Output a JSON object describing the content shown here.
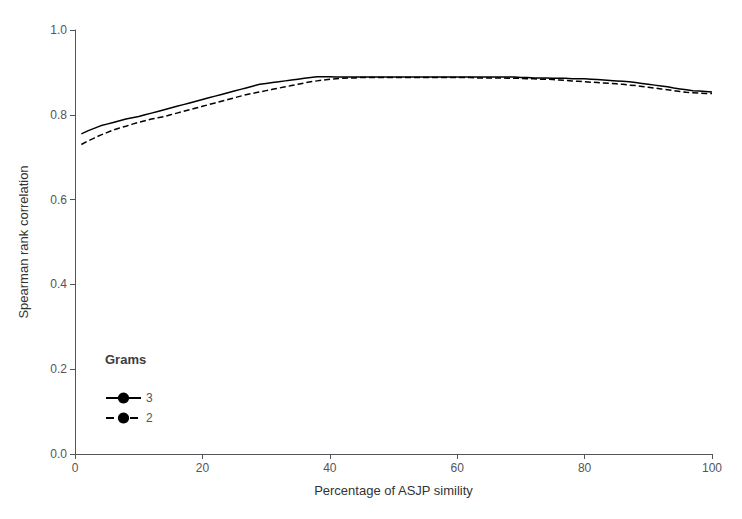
{
  "chart_data": {
    "type": "line",
    "xlabel": "Percentage of ASJP simility",
    "ylabel": "Spearman rank correlation",
    "legend_title": "Grams",
    "x": [
      1,
      2,
      3,
      4,
      5,
      6,
      7,
      8,
      9,
      10,
      11,
      12,
      13,
      14,
      15,
      16,
      17,
      18,
      19,
      20,
      21,
      22,
      23,
      24,
      25,
      26,
      27,
      28,
      29,
      30,
      31,
      32,
      33,
      34,
      35,
      36,
      37,
      38,
      39,
      40,
      41,
      42,
      43,
      44,
      45,
      46,
      47,
      48,
      49,
      50,
      51,
      52,
      53,
      54,
      55,
      56,
      57,
      58,
      59,
      60,
      61,
      62,
      63,
      64,
      65,
      66,
      67,
      68,
      69,
      70,
      71,
      72,
      73,
      74,
      75,
      76,
      77,
      78,
      79,
      80,
      81,
      82,
      83,
      84,
      85,
      86,
      87,
      88,
      89,
      90,
      91,
      92,
      93,
      94,
      95,
      96,
      97,
      98,
      99,
      100
    ],
    "series": [
      {
        "name": "3",
        "color": "#000000",
        "line_style": "solid",
        "values": [
          0.755,
          0.762,
          0.768,
          0.774,
          0.778,
          0.782,
          0.786,
          0.79,
          0.793,
          0.796,
          0.8,
          0.804,
          0.808,
          0.812,
          0.816,
          0.82,
          0.824,
          0.828,
          0.832,
          0.836,
          0.84,
          0.844,
          0.848,
          0.852,
          0.856,
          0.86,
          0.864,
          0.868,
          0.872,
          0.874,
          0.876,
          0.878,
          0.88,
          0.882,
          0.884,
          0.886,
          0.888,
          0.89,
          0.89,
          0.89,
          0.889,
          0.889,
          0.889,
          0.889,
          0.889,
          0.889,
          0.889,
          0.889,
          0.889,
          0.889,
          0.889,
          0.889,
          0.889,
          0.889,
          0.889,
          0.889,
          0.889,
          0.889,
          0.889,
          0.889,
          0.889,
          0.889,
          0.889,
          0.889,
          0.889,
          0.889,
          0.889,
          0.889,
          0.889,
          0.888,
          0.888,
          0.887,
          0.887,
          0.887,
          0.886,
          0.886,
          0.886,
          0.885,
          0.885,
          0.885,
          0.884,
          0.883,
          0.882,
          0.881,
          0.88,
          0.879,
          0.878,
          0.876,
          0.874,
          0.872,
          0.87,
          0.868,
          0.866,
          0.863,
          0.861,
          0.859,
          0.857,
          0.856,
          0.855,
          0.854
        ]
      },
      {
        "name": "2",
        "color": "#000000",
        "line_style": "dashed",
        "values": [
          0.73,
          0.738,
          0.745,
          0.752,
          0.758,
          0.764,
          0.769,
          0.773,
          0.778,
          0.782,
          0.786,
          0.79,
          0.793,
          0.796,
          0.8,
          0.804,
          0.808,
          0.812,
          0.816,
          0.82,
          0.824,
          0.828,
          0.832,
          0.836,
          0.84,
          0.844,
          0.848,
          0.851,
          0.854,
          0.857,
          0.86,
          0.863,
          0.866,
          0.869,
          0.872,
          0.875,
          0.878,
          0.88,
          0.882,
          0.884,
          0.885,
          0.886,
          0.887,
          0.887,
          0.888,
          0.888,
          0.888,
          0.888,
          0.888,
          0.888,
          0.888,
          0.888,
          0.888,
          0.888,
          0.888,
          0.888,
          0.888,
          0.888,
          0.888,
          0.888,
          0.888,
          0.888,
          0.887,
          0.887,
          0.887,
          0.887,
          0.887,
          0.886,
          0.886,
          0.886,
          0.885,
          0.885,
          0.884,
          0.884,
          0.883,
          0.882,
          0.881,
          0.88,
          0.879,
          0.878,
          0.877,
          0.876,
          0.875,
          0.874,
          0.873,
          0.872,
          0.87,
          0.869,
          0.867,
          0.865,
          0.863,
          0.861,
          0.859,
          0.857,
          0.855,
          0.853,
          0.852,
          0.851,
          0.85,
          0.85
        ]
      }
    ],
    "xlim": [
      0,
      100
    ],
    "ylim": [
      0.0,
      1.0
    ],
    "xticks": [
      0,
      20,
      40,
      60,
      80,
      100
    ],
    "yticks": [
      {
        "value": 0.0,
        "label": "0.0"
      },
      0.2,
      0.4,
      0.6,
      0.8,
      {
        "value": 1.0,
        "label": "1.0"
      }
    ],
    "grid": false,
    "legend": "lower left"
  }
}
